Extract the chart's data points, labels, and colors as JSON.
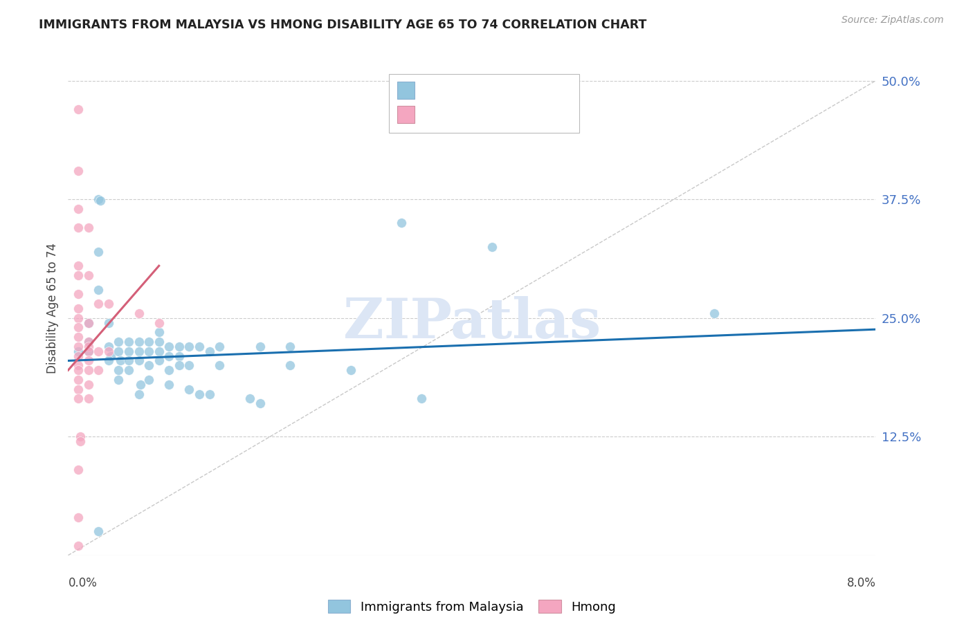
{
  "title": "IMMIGRANTS FROM MALAYSIA VS HMONG DISABILITY AGE 65 TO 74 CORRELATION CHART",
  "source": "Source: ZipAtlas.com",
  "ylabel": "Disability Age 65 to 74",
  "ytick_labels": [
    "12.5%",
    "25.0%",
    "37.5%",
    "50.0%"
  ],
  "ytick_vals": [
    0.125,
    0.25,
    0.375,
    0.5
  ],
  "xlim": [
    0.0,
    0.08
  ],
  "ylim": [
    0.0,
    0.52
  ],
  "blue_color": "#92c5de",
  "pink_color": "#f4a6c0",
  "blue_line_color": "#1a6faf",
  "pink_line_color": "#d45f78",
  "diag_line_color": "#bbbbbb",
  "blue_line": [
    [
      0.0,
      0.205
    ],
    [
      0.08,
      0.238
    ]
  ],
  "pink_line": [
    [
      0.0,
      0.195
    ],
    [
      0.009,
      0.305
    ]
  ],
  "blue_scatter": [
    [
      0.001,
      0.215
    ],
    [
      0.002,
      0.225
    ],
    [
      0.002,
      0.245
    ],
    [
      0.002,
      0.215
    ],
    [
      0.003,
      0.28
    ],
    [
      0.003,
      0.32
    ],
    [
      0.003,
      0.375
    ],
    [
      0.0032,
      0.374
    ],
    [
      0.004,
      0.22
    ],
    [
      0.004,
      0.245
    ],
    [
      0.0042,
      0.21
    ],
    [
      0.004,
      0.205
    ],
    [
      0.005,
      0.225
    ],
    [
      0.005,
      0.215
    ],
    [
      0.0052,
      0.205
    ],
    [
      0.005,
      0.195
    ],
    [
      0.005,
      0.185
    ],
    [
      0.006,
      0.225
    ],
    [
      0.006,
      0.215
    ],
    [
      0.006,
      0.205
    ],
    [
      0.006,
      0.195
    ],
    [
      0.007,
      0.225
    ],
    [
      0.007,
      0.215
    ],
    [
      0.007,
      0.205
    ],
    [
      0.0072,
      0.18
    ],
    [
      0.007,
      0.17
    ],
    [
      0.008,
      0.225
    ],
    [
      0.008,
      0.215
    ],
    [
      0.008,
      0.2
    ],
    [
      0.008,
      0.185
    ],
    [
      0.009,
      0.235
    ],
    [
      0.009,
      0.225
    ],
    [
      0.009,
      0.215
    ],
    [
      0.009,
      0.205
    ],
    [
      0.01,
      0.22
    ],
    [
      0.01,
      0.21
    ],
    [
      0.01,
      0.195
    ],
    [
      0.01,
      0.18
    ],
    [
      0.011,
      0.22
    ],
    [
      0.011,
      0.21
    ],
    [
      0.011,
      0.2
    ],
    [
      0.012,
      0.22
    ],
    [
      0.012,
      0.2
    ],
    [
      0.012,
      0.175
    ],
    [
      0.013,
      0.22
    ],
    [
      0.013,
      0.17
    ],
    [
      0.014,
      0.215
    ],
    [
      0.014,
      0.17
    ],
    [
      0.015,
      0.22
    ],
    [
      0.015,
      0.2
    ],
    [
      0.018,
      0.165
    ],
    [
      0.019,
      0.22
    ],
    [
      0.019,
      0.16
    ],
    [
      0.022,
      0.22
    ],
    [
      0.022,
      0.2
    ],
    [
      0.028,
      0.195
    ],
    [
      0.033,
      0.35
    ],
    [
      0.035,
      0.165
    ],
    [
      0.042,
      0.325
    ],
    [
      0.064,
      0.255
    ],
    [
      0.003,
      0.025
    ]
  ],
  "pink_scatter": [
    [
      0.001,
      0.47
    ],
    [
      0.001,
      0.405
    ],
    [
      0.001,
      0.365
    ],
    [
      0.001,
      0.345
    ],
    [
      0.001,
      0.305
    ],
    [
      0.001,
      0.295
    ],
    [
      0.001,
      0.275
    ],
    [
      0.001,
      0.26
    ],
    [
      0.001,
      0.25
    ],
    [
      0.001,
      0.24
    ],
    [
      0.001,
      0.23
    ],
    [
      0.001,
      0.22
    ],
    [
      0.001,
      0.21
    ],
    [
      0.001,
      0.2
    ],
    [
      0.001,
      0.195
    ],
    [
      0.001,
      0.185
    ],
    [
      0.001,
      0.175
    ],
    [
      0.001,
      0.165
    ],
    [
      0.0012,
      0.125
    ],
    [
      0.0012,
      0.12
    ],
    [
      0.001,
      0.09
    ],
    [
      0.001,
      0.04
    ],
    [
      0.002,
      0.345
    ],
    [
      0.002,
      0.295
    ],
    [
      0.002,
      0.245
    ],
    [
      0.002,
      0.225
    ],
    [
      0.002,
      0.22
    ],
    [
      0.002,
      0.215
    ],
    [
      0.002,
      0.205
    ],
    [
      0.002,
      0.195
    ],
    [
      0.002,
      0.18
    ],
    [
      0.002,
      0.165
    ],
    [
      0.003,
      0.265
    ],
    [
      0.003,
      0.215
    ],
    [
      0.003,
      0.195
    ],
    [
      0.004,
      0.265
    ],
    [
      0.004,
      0.215
    ],
    [
      0.007,
      0.255
    ],
    [
      0.009,
      0.245
    ],
    [
      0.001,
      0.01
    ]
  ],
  "watermark": "ZIPatlas",
  "watermark_color": "#dce6f5",
  "background_color": "#ffffff",
  "grid_color": "#cccccc"
}
